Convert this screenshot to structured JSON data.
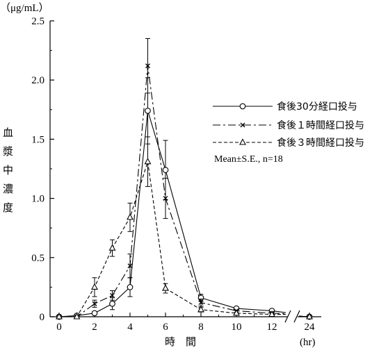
{
  "chart_data": {
    "type": "line",
    "y_unit_label": "（μg/mL）",
    "ylabel_chars": [
      "血",
      "漿",
      "中",
      "濃",
      "度"
    ],
    "xlabel": "時　間",
    "x_unit_label": "(hr)",
    "x_ticks": [
      "0",
      "2",
      "4",
      "6",
      "8",
      "10",
      "12",
      "24"
    ],
    "y_ticks": [
      "0",
      "0.5",
      "1.0",
      "1.5",
      "2.0",
      "2.5"
    ],
    "ylim": [
      0,
      2.5
    ],
    "x_axis_break": "between 12 and 24",
    "grid": false,
    "legend_position": "right",
    "series": [
      {
        "name": "食後30分経口投与",
        "marker": "circle",
        "line_style": "solid",
        "x": [
          0,
          1,
          2,
          3,
          4,
          5,
          6,
          8,
          10,
          12,
          24
        ],
        "y": [
          0.0,
          0.01,
          0.03,
          0.11,
          0.25,
          1.74,
          1.24,
          0.16,
          0.07,
          0.05,
          0.0
        ],
        "se": [
          0,
          0,
          0.01,
          0.05,
          0.08,
          0.28,
          0.25,
          0.03,
          0,
          0,
          0
        ]
      },
      {
        "name": "食後１時間経口投与",
        "marker": "x",
        "line_style": "long-dash-dot",
        "x": [
          0,
          1,
          2,
          3,
          4,
          5,
          6,
          8,
          10,
          12,
          24
        ],
        "y": [
          0.0,
          0.0,
          0.11,
          0.18,
          0.43,
          2.12,
          1.0,
          0.12,
          0.05,
          0.03,
          0.0
        ],
        "se": [
          0,
          0,
          0.03,
          0.04,
          0.1,
          0.23,
          0.17,
          0.03,
          0,
          0,
          0
        ]
      },
      {
        "name": "食後３時間経口投与",
        "marker": "triangle",
        "line_style": "short-dash",
        "x": [
          0,
          1,
          2,
          3,
          4,
          5,
          6,
          8,
          10,
          12,
          24
        ],
        "y": [
          0.0,
          0.0,
          0.25,
          0.58,
          0.84,
          1.31,
          0.24,
          0.06,
          0.03,
          0.02,
          0.0
        ],
        "se": [
          0,
          0,
          0.08,
          0.07,
          0.12,
          0.21,
          0.04,
          0.02,
          0,
          0,
          0
        ]
      }
    ],
    "annotation": "Mean±S.E., n=18"
  }
}
